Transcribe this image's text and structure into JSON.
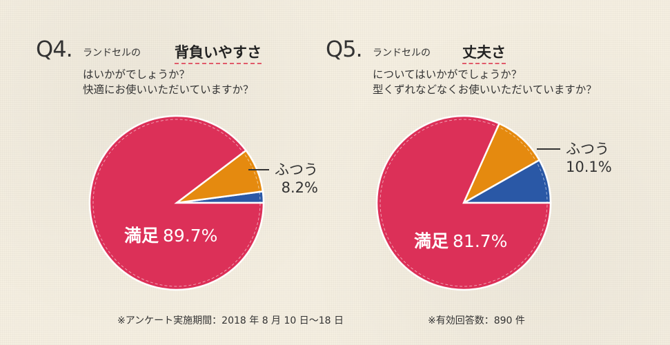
{
  "colors": {
    "satisfied": "#dc3058",
    "normal": "#e58a0f",
    "other": "#2a58a6"
  },
  "q4": {
    "number": "Q4.",
    "subject": "ランドセルの",
    "keyword": "背負いやすさ",
    "line1": "はいかがでしょうか？",
    "line2": "快適にお使いいただいていますか？"
  },
  "q5": {
    "number": "Q5.",
    "subject": "ランドセルの",
    "keyword": "丈夫さ",
    "line1": "についてはいかがでしょうか？",
    "line2": "型くずれなどなくお使いいただいていますか？"
  },
  "chart_data": [
    {
      "type": "pie",
      "slices": [
        {
          "label": "満足",
          "value": 89.7,
          "display": "89.7%",
          "color": "#dc3058"
        },
        {
          "label": "ふつう",
          "value": 8.2,
          "display": "8.2%",
          "color": "#e58a0f"
        },
        {
          "value": 2.1,
          "color": "#2a58a6"
        }
      ]
    },
    {
      "type": "pie",
      "slices": [
        {
          "label": "満足",
          "value": 81.7,
          "display": "81.7%",
          "color": "#dc3058"
        },
        {
          "label": "ふつう",
          "value": 10.1,
          "display": "10.1%",
          "color": "#e58a0f"
        },
        {
          "value": 8.2,
          "color": "#2a58a6"
        }
      ]
    }
  ],
  "footer": {
    "period": "※アンケート実施期間：2018 年 8 月 10 日～18 日",
    "responses": "※有効回答数：890 件"
  }
}
